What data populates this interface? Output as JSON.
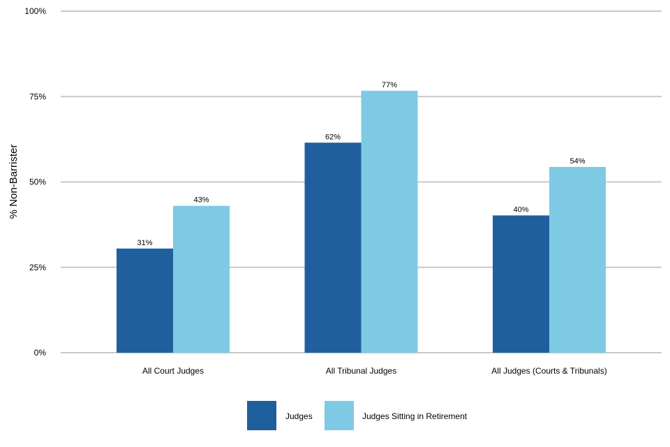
{
  "chart_data": {
    "type": "bar",
    "ylabel": "% Non-Barrister",
    "ylim": [
      0,
      100
    ],
    "yticks": [
      0,
      25,
      50,
      75,
      100
    ],
    "ytick_labels": [
      "0%",
      "25%",
      "50%",
      "75%",
      "100%"
    ],
    "grid": true,
    "legend_position": "bottom",
    "categories": [
      "All Court Judges",
      "All Tribunal Judges",
      "All Judges (Courts & Tribunals)"
    ],
    "series": [
      {
        "name": "Judges",
        "color": "#1f5f9e",
        "values": [
          30.5,
          61.5,
          40.2
        ],
        "labels": [
          "31%",
          "62%",
          "40%"
        ]
      },
      {
        "name": "Judges Sitting in Retirement",
        "color": "#7ecae4",
        "values": [
          43.0,
          76.7,
          54.4
        ],
        "labels": [
          "43%",
          "77%",
          "54%"
        ]
      }
    ],
    "gridline_color": "#c8c8c8"
  }
}
